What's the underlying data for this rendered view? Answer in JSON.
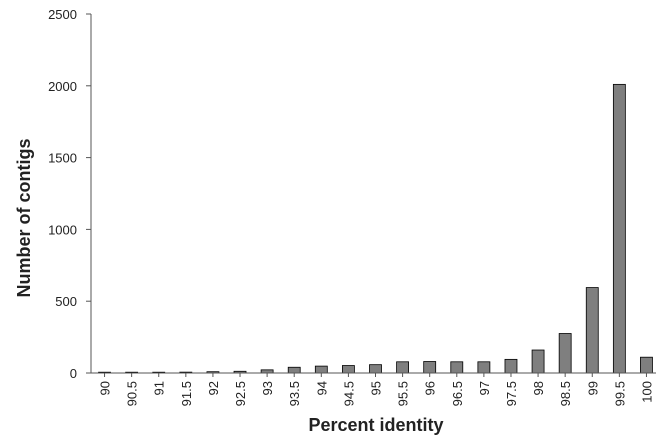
{
  "chart_data": {
    "type": "bar",
    "title": "",
    "xlabel": "Percent identity",
    "ylabel": "Number of contigs",
    "ylim": [
      0,
      2500
    ],
    "y_ticks": [
      "0",
      "500",
      "1000",
      "1500",
      "2000",
      "2500"
    ],
    "grid": false,
    "legend": "none",
    "categories": [
      "90",
      "90.5",
      "91",
      "91.5",
      "92",
      "92.5",
      "93",
      "93.5",
      "94",
      "94.5",
      "95",
      "95.5",
      "96",
      "96.5",
      "97",
      "97.5",
      "98",
      "98.5",
      "99",
      "99.5",
      "100"
    ],
    "values": [
      0,
      2,
      3,
      6,
      9,
      12,
      22,
      40,
      48,
      52,
      58,
      78,
      80,
      78,
      78,
      95,
      160,
      275,
      595,
      2010,
      110
    ],
    "bar_color": "#7f7f7f",
    "bar_outline": "#000000"
  }
}
